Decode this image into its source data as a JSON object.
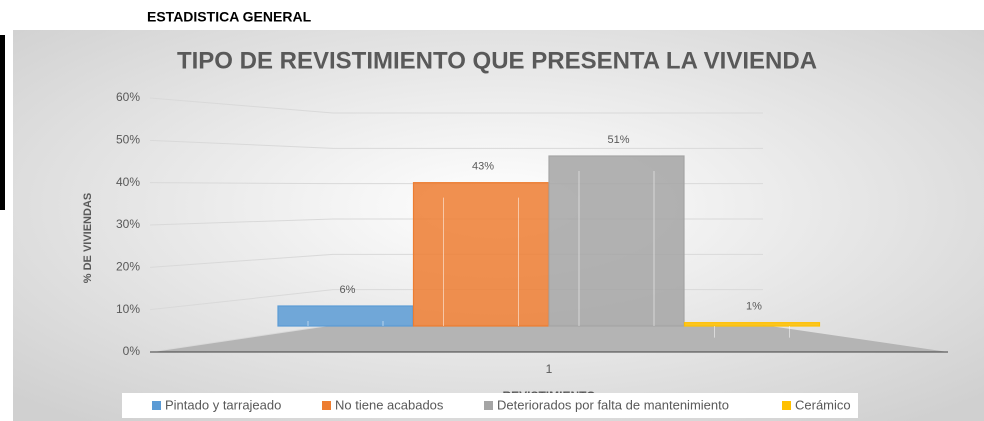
{
  "header": "ESTADISTICA GENERAL",
  "chart_data": {
    "type": "bar3d",
    "title": "TIPO DE REVISTIMIENTO QUE PRESENTA LA VIVIENDA",
    "x_label": "REVISTIMIENTO",
    "y_label": "% DE VIVIENDAS",
    "categories": [
      "1"
    ],
    "series": [
      {
        "name": "Pintado y tarrajeado",
        "color": "#5b9bd5",
        "values": [
          6
        ],
        "value_labels": [
          "6%"
        ]
      },
      {
        "name": "No tiene acabados",
        "color": "#ed7d31",
        "values": [
          43
        ],
        "value_labels": [
          "43%"
        ]
      },
      {
        "name": "Deteriorados por falta de mantenimiento",
        "color": "#a5a5a5",
        "values": [
          51
        ],
        "value_labels": [
          "51%"
        ]
      },
      {
        "name": "Cerámico",
        "color": "#ffc000",
        "values": [
          1
        ],
        "value_labels": [
          "1%"
        ]
      }
    ],
    "ylim": [
      0,
      60
    ],
    "yticks": [
      {
        "value": 0,
        "label": "0%"
      },
      {
        "value": 10,
        "label": "10%"
      },
      {
        "value": 20,
        "label": "20%"
      },
      {
        "value": 30,
        "label": "30%"
      },
      {
        "value": 40,
        "label": "40%"
      },
      {
        "value": 50,
        "label": "50%"
      },
      {
        "value": 60,
        "label": "60%"
      }
    ],
    "grid": true,
    "legend": "bottom"
  }
}
